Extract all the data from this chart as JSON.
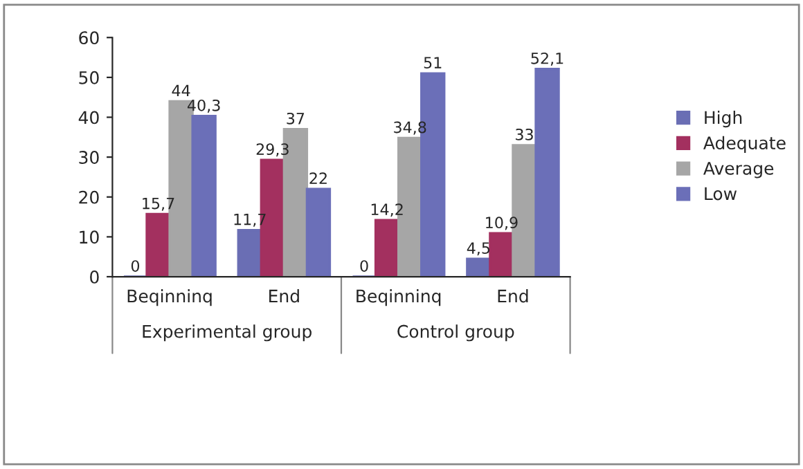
{
  "chart_data": {
    "type": "bar",
    "categories": [
      "Beqinninq",
      "End",
      "Beqinninq",
      "End"
    ],
    "series": [
      {
        "name": "High",
        "color": "#6a6eb4",
        "values": [
          0,
          11.7,
          0,
          4.5
        ],
        "value_labels": [
          "0",
          "11,7",
          "0",
          "4,5"
        ]
      },
      {
        "name": "Adequate",
        "color": "#a3305f",
        "values": [
          15.7,
          29.3,
          14.2,
          10.9
        ],
        "value_labels": [
          "15,7",
          "29,3",
          "14,2",
          "10,9"
        ]
      },
      {
        "name": "Average",
        "color": "#a6a6a6",
        "values": [
          44,
          37,
          34.8,
          33
        ],
        "value_labels": [
          "44",
          "37",
          "34,8",
          "33"
        ]
      },
      {
        "name": "Low",
        "color": "#6b6fb8",
        "values": [
          40.3,
          22,
          51,
          52.1
        ],
        "value_labels": [
          "40,3",
          "22",
          "51",
          "52,1"
        ]
      }
    ],
    "annotations": [
      "Experimental group",
      "Control group"
    ],
    "ylim": [
      0,
      60
    ],
    "yticks": [
      0,
      10,
      20,
      30,
      40,
      50,
      60
    ],
    "grid": false,
    "legend": "right"
  }
}
